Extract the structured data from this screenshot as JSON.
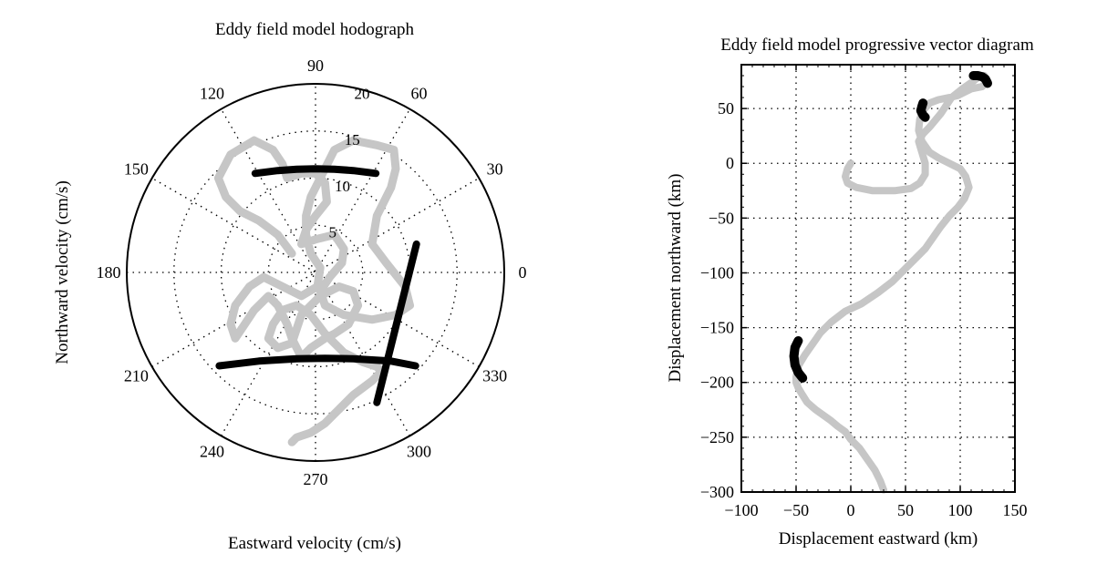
{
  "chart_data": [
    {
      "type": "polar-line",
      "title": "Eddy field model hodograph",
      "xlabel": "Eastward velocity (cm/s)",
      "ylabel": "Northward velocity (cm/s)",
      "angle_ticks": [
        "0",
        "30",
        "60",
        "90",
        "120",
        "150",
        "180",
        "210",
        "240",
        "270",
        "300",
        "330"
      ],
      "angle_tick_values": [
        0,
        30,
        60,
        90,
        120,
        150,
        180,
        210,
        240,
        270,
        300,
        330
      ],
      "radial_ticks": [
        "5",
        "10",
        "15",
        "20"
      ],
      "radial_tick_values": [
        5,
        10,
        15,
        20
      ],
      "rlim": [
        0,
        20
      ],
      "grid": true,
      "series": [
        {
          "style": "gray",
          "color": "#c6c6c6",
          "x": [
            -2.5,
            -4,
            -6,
            -8,
            -9.5,
            -10.3,
            -9,
            -6.5,
            -4.5,
            -3.5,
            -3,
            -1.5,
            0,
            1,
            1.2,
            0,
            -1,
            -1.5,
            0,
            2,
            3,
            2.8,
            1.5,
            0.5,
            1,
            3,
            6,
            8.5,
            10,
            9.5,
            7.5,
            6,
            6.5,
            8,
            8.5,
            8.3,
            6.5,
            4,
            2,
            0.5,
            -0.5,
            -1,
            -1,
            -0.5,
            0.5,
            0.2,
            -1.5,
            -3.5,
            -5.5,
            -7,
            -8.5,
            -9,
            -8.5,
            -7.5,
            -6.5,
            -5,
            -4,
            -3,
            -2.5,
            -1.5,
            -0.5,
            1,
            2,
            3.5,
            4.5,
            4,
            2.5,
            0.5,
            -1.5,
            -2,
            -2.5,
            -4,
            -5,
            -4.5,
            -3.5,
            -2,
            -0.5,
            1,
            3,
            5,
            6.5,
            7,
            6,
            4,
            2.5,
            1,
            -0.5,
            -2,
            -2.5
          ],
          "y": [
            2,
            4,
            5.5,
            6.5,
            8,
            10,
            12.5,
            14,
            13,
            11.5,
            10,
            10.5,
            10.5,
            9.5,
            7.5,
            6,
            4.5,
            3,
            3.5,
            4,
            2.5,
            1,
            -0.5,
            -2,
            -3.5,
            -4.5,
            -5,
            -4.5,
            -3.5,
            -1.5,
            1,
            3,
            6,
            9,
            11,
            13,
            13.5,
            14,
            13,
            10,
            8,
            6,
            4,
            2,
            0.5,
            -1.5,
            -2.5,
            -1.5,
            -0.5,
            -1.5,
            -3.5,
            -5.5,
            -7,
            -5.5,
            -4,
            -2.5,
            -3.5,
            -5.5,
            -7,
            -9,
            -8,
            -7,
            -6.5,
            -5.5,
            -3.5,
            -2,
            -1.5,
            -2.5,
            -4.5,
            -6,
            -7.5,
            -8,
            -7,
            -5.5,
            -4,
            -3.5,
            -4.5,
            -6.5,
            -8.5,
            -9.5,
            -10,
            -10.5,
            -11.5,
            -13,
            -14.5,
            -16,
            -17,
            -17.5,
            -18
          ]
        },
        {
          "style": "black",
          "color": "#000000",
          "x": [
            -6.4,
            -4,
            -2,
            0,
            2,
            4,
            6.4
          ],
          "y": [
            10.5,
            10.8,
            10.95,
            11,
            10.95,
            10.8,
            10.5
          ]
        },
        {
          "style": "black",
          "color": "#000000",
          "x": [
            -10.2,
            -6,
            -2,
            1,
            4,
            8,
            10.6
          ],
          "y": [
            -9.9,
            -9.4,
            -9.15,
            -9.1,
            -9.15,
            -9.4,
            -9.9
          ]
        },
        {
          "style": "black",
          "color": "#000000",
          "x": [
            6.5,
            10.7
          ],
          "y": [
            -13.8,
            3
          ]
        }
      ]
    },
    {
      "type": "line",
      "title": "Eddy field model progressive vector diagram",
      "xlabel": "Displacement eastward (km)",
      "ylabel": "Displacement northward (km)",
      "xlim": [
        -100,
        150
      ],
      "ylim": [
        -300,
        90
      ],
      "x_ticks": [
        "−100",
        "−50",
        "0",
        "50",
        "100",
        "150"
      ],
      "x_tick_values": [
        -100,
        -50,
        0,
        50,
        100,
        150
      ],
      "y_ticks": [
        "50",
        "0",
        "−50",
        "−100",
        "−150",
        "−200",
        "−250",
        "−300"
      ],
      "y_tick_values": [
        50,
        0,
        -50,
        -100,
        -150,
        -200,
        -250,
        -300
      ],
      "grid": true,
      "series": [
        {
          "style": "gray",
          "color": "#c6c6c6",
          "x": [
            0,
            -3,
            -5,
            -3,
            5,
            20,
            40,
            55,
            63,
            68,
            68,
            65,
            62,
            66,
            72,
            82,
            92,
            102,
            112,
            118,
            122,
            125,
            120,
            110,
            98,
            90,
            80,
            72,
            66,
            63,
            62,
            65,
            72,
            80,
            90,
            100,
            105,
            108,
            104,
            98,
            90,
            82,
            75,
            68,
            58,
            48,
            38,
            25,
            10,
            -5,
            -18,
            -28,
            -35,
            -42,
            -48,
            -50,
            -50,
            -48,
            -45,
            -40,
            -32,
            -25,
            -18,
            -12,
            -5,
            0,
            8,
            15,
            22,
            27,
            30
          ],
          "y": [
            0,
            -5,
            -12,
            -18,
            -22,
            -25,
            -25,
            -23,
            -18,
            -10,
            0,
            10,
            20,
            27,
            33,
            45,
            60,
            68,
            75,
            80,
            80,
            75,
            70,
            68,
            62,
            60,
            58,
            55,
            48,
            40,
            30,
            20,
            10,
            5,
            0,
            -5,
            -12,
            -22,
            -32,
            -40,
            -48,
            -58,
            -68,
            -78,
            -88,
            -98,
            -108,
            -118,
            -128,
            -135,
            -145,
            -155,
            -165,
            -175,
            -185,
            -195,
            -200,
            -205,
            -210,
            -218,
            -225,
            -230,
            -235,
            -240,
            -245,
            -252,
            -260,
            -270,
            -280,
            -290,
            -298
          ]
        },
        {
          "style": "black",
          "color": "#000000",
          "x": [
            112,
            116,
            120,
            123,
            125
          ],
          "y": [
            80,
            80,
            79,
            77,
            73
          ]
        },
        {
          "style": "black",
          "color": "#000000",
          "x": [
            66,
            65,
            64,
            66,
            68
          ],
          "y": [
            55,
            52,
            48,
            44,
            42
          ]
        },
        {
          "style": "black",
          "color": "#000000",
          "x": [
            -48,
            -51,
            -52,
            -51,
            -48,
            -44
          ],
          "y": [
            -162,
            -168,
            -176,
            -184,
            -191,
            -196
          ]
        }
      ]
    }
  ]
}
